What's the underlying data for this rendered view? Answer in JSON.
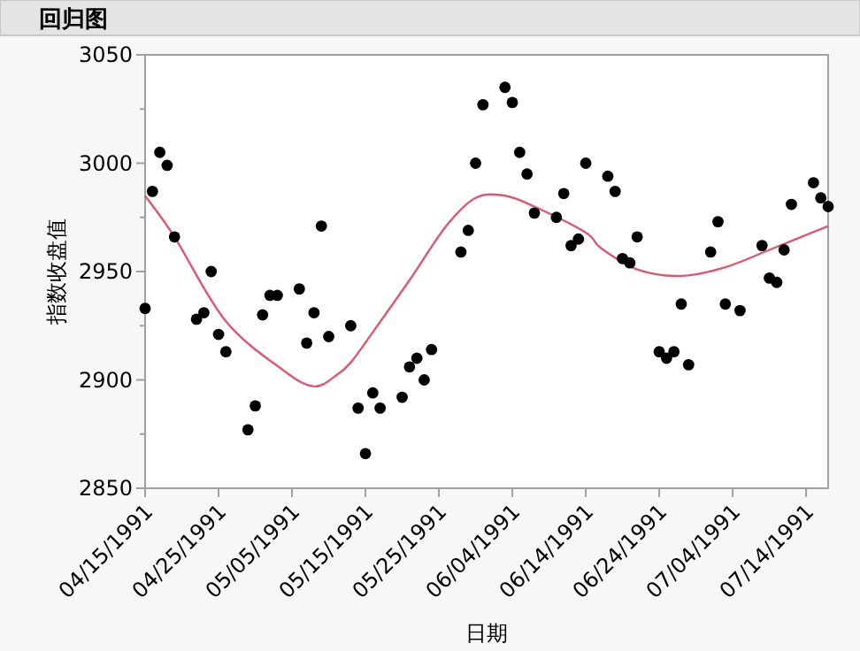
{
  "chart_data": {
    "type": "scatter",
    "title": "回归图",
    "xlabel": "日期",
    "ylabel": "指数收盘值",
    "series": [
      {
        "type": "scatter",
        "color": "#000000",
        "marker": "circle",
        "x": [
          "1991-04-15",
          "1991-04-16",
          "1991-04-17",
          "1991-04-18",
          "1991-04-19",
          "1991-04-22",
          "1991-04-23",
          "1991-04-24",
          "1991-04-25",
          "1991-04-26",
          "1991-04-29",
          "1991-04-30",
          "1991-05-01",
          "1991-05-02",
          "1991-05-03",
          "1991-05-06",
          "1991-05-07",
          "1991-05-08",
          "1991-05-09",
          "1991-05-10",
          "1991-05-13",
          "1991-05-14",
          "1991-05-15",
          "1991-05-16",
          "1991-05-17",
          "1991-05-20",
          "1991-05-21",
          "1991-05-22",
          "1991-05-23",
          "1991-05-24",
          "1991-05-28",
          "1991-05-29",
          "1991-05-30",
          "1991-05-31",
          "1991-06-03",
          "1991-06-04",
          "1991-06-05",
          "1991-06-06",
          "1991-06-07",
          "1991-06-10",
          "1991-06-11",
          "1991-06-12",
          "1991-06-13",
          "1991-06-14",
          "1991-06-17",
          "1991-06-18",
          "1991-06-19",
          "1991-06-20",
          "1991-06-21",
          "1991-06-24",
          "1991-06-25",
          "1991-06-26",
          "1991-06-27",
          "1991-06-28",
          "1991-07-01",
          "1991-07-02",
          "1991-07-03",
          "1991-07-05",
          "1991-07-08",
          "1991-07-09",
          "1991-07-10",
          "1991-07-11",
          "1991-07-12",
          "1991-07-15",
          "1991-07-16",
          "1991-07-17"
        ],
        "values": [
          2933,
          2987,
          3005,
          2999,
          2966,
          2928,
          2931,
          2950,
          2921,
          2913,
          2877,
          2888,
          2930,
          2939,
          2939,
          2942,
          2917,
          2931,
          2971,
          2920,
          2925,
          2887,
          2866,
          2894,
          2887,
          2892,
          2906,
          2910,
          2900,
          2914,
          2959,
          2969,
          3000,
          3027,
          3035,
          3028,
          3005,
          2995,
          2977,
          2975,
          2986,
          2962,
          2965,
          3000,
          2994,
          2987,
          2956,
          2954,
          2966,
          2913,
          2910,
          2913,
          2935,
          2907,
          2959,
          2973,
          2935,
          2932,
          2962,
          2947,
          2945,
          2960,
          2981,
          2991,
          2984,
          2980
        ]
      },
      {
        "type": "line",
        "color": "#e0566c",
        "marker": "none",
        "x": [
          "1991-04-15",
          "1991-04-19",
          "1991-04-26",
          "1991-05-04",
          "1991-05-08",
          "1991-05-11",
          "1991-05-13",
          "1991-05-16",
          "1991-05-21",
          "1991-05-26",
          "1991-05-30",
          "1991-06-03",
          "1991-06-07",
          "1991-06-14",
          "1991-06-16",
          "1991-06-21",
          "1991-06-27",
          "1991-07-03",
          "1991-07-09",
          "1991-07-17"
        ],
        "values": [
          2985,
          2966,
          2927,
          2904,
          2897,
          2902,
          2908,
          2922,
          2946,
          2971,
          2984,
          2985,
          2980,
          2968,
          2961,
          2951,
          2948,
          2952,
          2960,
          2971
        ]
      }
    ],
    "xlim": [
      "1991-04-15",
      "1991-07-17"
    ],
    "xticks": [
      {
        "value": "1991-04-15",
        "label": "04/15/1991"
      },
      {
        "value": "1991-04-25",
        "label": "04/25/1991"
      },
      {
        "value": "1991-05-05",
        "label": "05/05/1991"
      },
      {
        "value": "1991-05-15",
        "label": "05/15/1991"
      },
      {
        "value": "1991-05-25",
        "label": "05/25/1991"
      },
      {
        "value": "1991-06-04",
        "label": "06/04/1991"
      },
      {
        "value": "1991-06-14",
        "label": "06/14/1991"
      },
      {
        "value": "1991-06-24",
        "label": "06/24/1991"
      },
      {
        "value": "1991-07-04",
        "label": "07/04/1991"
      },
      {
        "value": "1991-07-14",
        "label": "07/14/1991"
      }
    ],
    "ylim": [
      2850,
      3050
    ],
    "yticks": [
      2850,
      {
        "value": 2875,
        "label": null
      },
      2900,
      {
        "value": 2925,
        "label": null
      },
      2950,
      {
        "value": 2975,
        "label": null
      },
      3000,
      {
        "value": 3025,
        "label": null
      },
      3050
    ]
  }
}
